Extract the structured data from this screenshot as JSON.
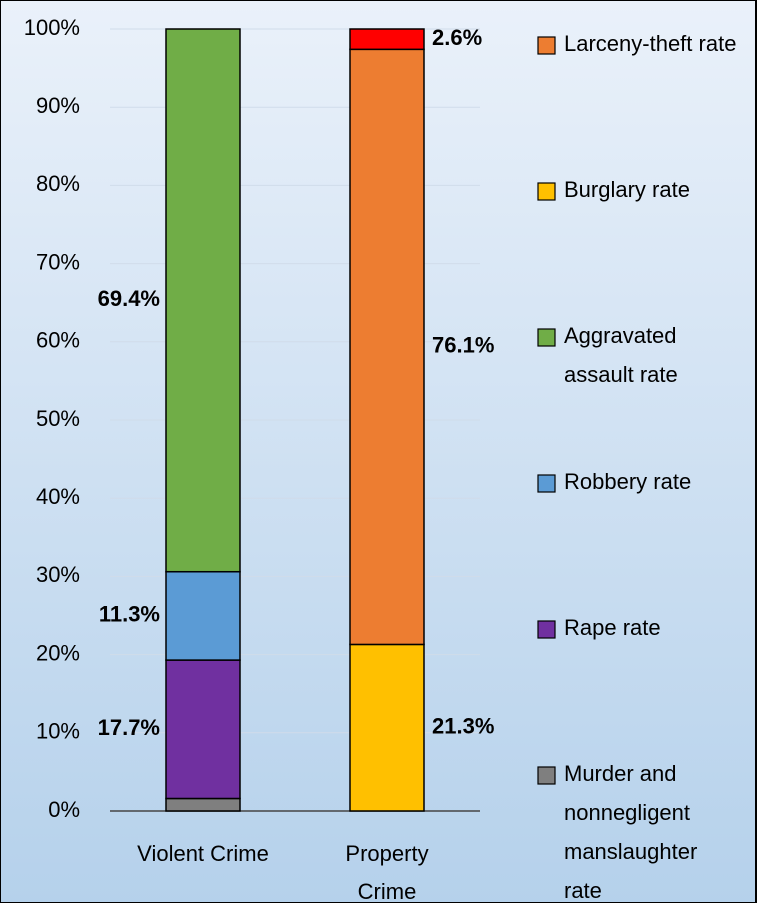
{
  "chart_data": {
    "type": "stacked_bar",
    "categories": [
      "Violent Crime",
      "Property Crime"
    ],
    "series": [
      {
        "name": "Murder and nonnegligent manslaughter rate",
        "color": "#7f7f7f",
        "values": [
          1.6,
          null
        ],
        "value_labels": [
          null,
          null
        ]
      },
      {
        "name": "Rape rate",
        "color": "#7030a0",
        "values": [
          17.7,
          null
        ],
        "value_labels": [
          "17.7%",
          null
        ]
      },
      {
        "name": "Robbery rate",
        "color": "#5b9bd5",
        "values": [
          11.3,
          null
        ],
        "value_labels": [
          "11.3%",
          null
        ]
      },
      {
        "name": "Aggravated assault rate",
        "color": "#70ad47",
        "values": [
          69.4,
          null
        ],
        "value_labels": [
          "69.4%",
          null
        ]
      },
      {
        "name": "Burglary rate",
        "color": "#ffc000",
        "values": [
          null,
          21.3
        ],
        "value_labels": [
          null,
          "21.3%"
        ]
      },
      {
        "name": "Larceny-theft rate",
        "color": "#ed7d31",
        "values": [
          null,
          76.1
        ],
        "value_labels": [
          null,
          "76.1%"
        ]
      },
      {
        "color": "#ff0000",
        "values": [
          null,
          2.6
        ],
        "value_labels": [
          null,
          "2.6%"
        ]
      }
    ],
    "ylim": [
      0,
      100
    ],
    "yticks": [
      {
        "value": 0,
        "label": "0%"
      },
      {
        "value": 10,
        "label": "10%"
      },
      {
        "value": 20,
        "label": "20%"
      },
      {
        "value": 30,
        "label": "30%"
      },
      {
        "value": 40,
        "label": "40%"
      },
      {
        "value": 50,
        "label": "50%"
      },
      {
        "value": 60,
        "label": "60%"
      },
      {
        "value": 70,
        "label": "70%"
      },
      {
        "value": 80,
        "label": "80%"
      },
      {
        "value": 90,
        "label": "90%"
      },
      {
        "value": 100,
        "label": "100%"
      }
    ],
    "grid": true,
    "legend": "right"
  }
}
